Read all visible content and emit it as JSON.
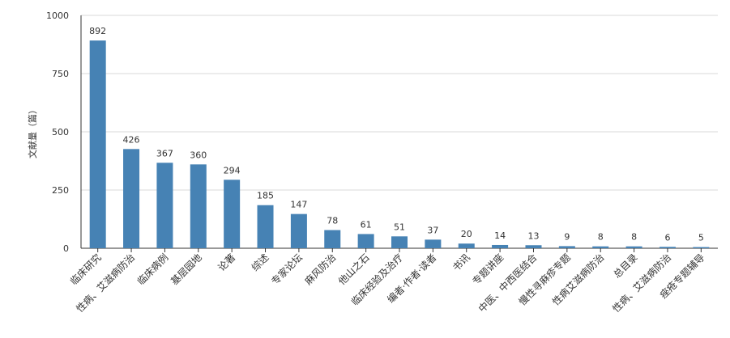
{
  "chart_data": {
    "type": "bar",
    "title": "",
    "xlabel": "",
    "ylabel": "文献量（篇）",
    "ylim": [
      0,
      1000
    ],
    "yticks": [
      0,
      250,
      500,
      750,
      1000
    ],
    "grid": true,
    "bar_color": "#4682b4",
    "categories": [
      "临床研究",
      "性病、艾滋病防治",
      "临床病例",
      "基层园地",
      "论著",
      "综述",
      "专家论坛",
      "麻风防治",
      "他山之石",
      "临床经验及治疗",
      "编者·作者·读者",
      "书讯",
      "专题讲座",
      "中医、中西医结合",
      "慢性寻麻疹专题",
      "性病艾滋病防治",
      "总目录",
      "性病、艾滋病防治",
      "痤疮专题辅导"
    ],
    "values": [
      892,
      426,
      367,
      360,
      294,
      185,
      147,
      78,
      61,
      51,
      37,
      20,
      14,
      13,
      9,
      8,
      8,
      6,
      5
    ]
  }
}
